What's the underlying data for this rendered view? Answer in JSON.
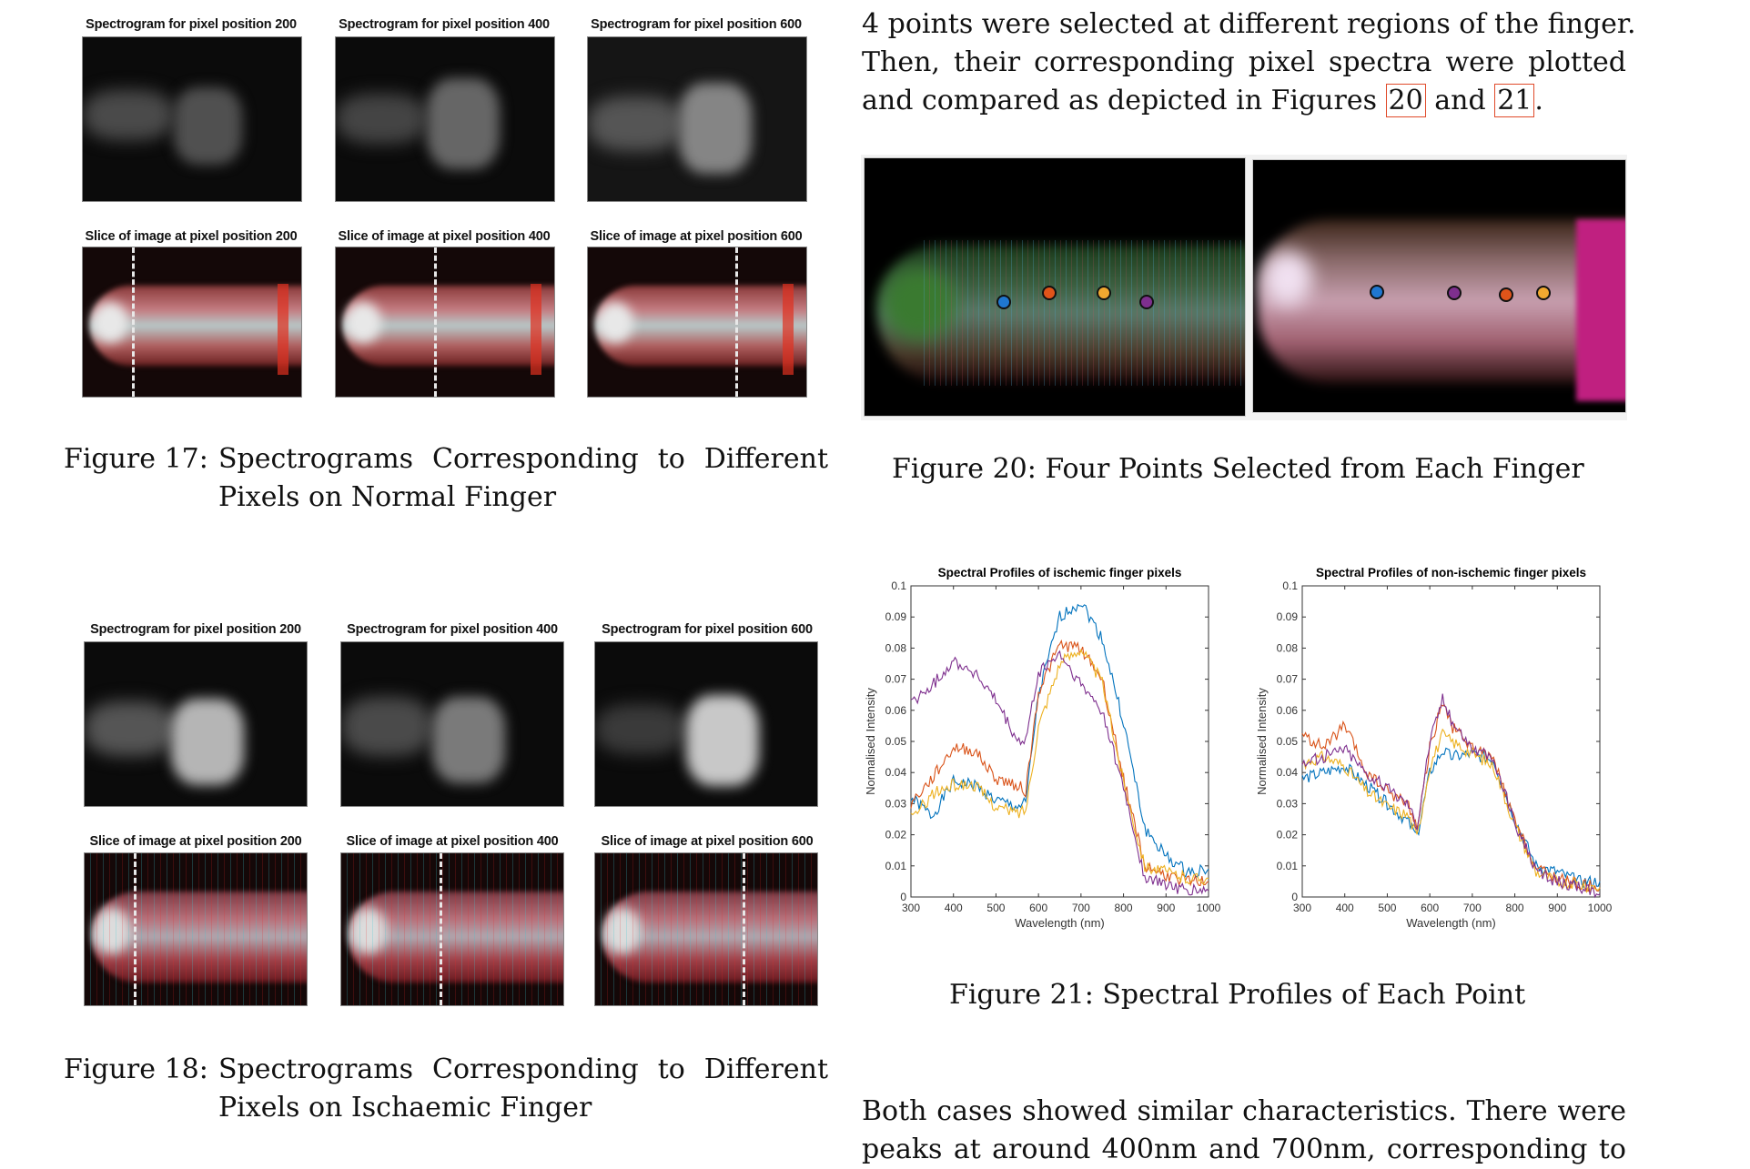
{
  "figure17": {
    "spectrogram_titles": [
      "Spectrogram for pixel position 200",
      "Spectrogram for pixel position 400",
      "Spectrogram for pixel position 600"
    ],
    "slice_titles": [
      "Slice of image at pixel position 200",
      "Slice of image at pixel position 400",
      "Slice of image at pixel position 600"
    ],
    "caption_label": "Figure 17:",
    "caption_line1": "Spectrograms  Corresponding  to  Different",
    "caption_line2": "Pixels on Normal Finger"
  },
  "figure18": {
    "spectrogram_titles": [
      "Spectrogram for pixel position 200",
      "Spectrogram for pixel position 400",
      "Spectrogram for pixel position 600"
    ],
    "slice_titles": [
      "Slice of image at pixel position 200",
      "Slice of image at pixel position 400",
      "Slice of image at pixel position 600"
    ],
    "caption_label": "Figure 18:",
    "caption_line1": "Spectrograms  Corresponding  to  Different",
    "caption_line2": "Pixels on Ischaemic Finger"
  },
  "intro_paragraph": {
    "line1": "4 points were selected at different regions of the finger.",
    "line2": "Then, their corresponding pixel spectra were plotted",
    "line3_before": "and compared as depicted in Figures ",
    "ref1": "20",
    "line3_mid": " and ",
    "ref2": "21",
    "line3_after": "."
  },
  "figure20": {
    "caption": "Figure 20: Four Points Selected from Each Finger",
    "point_colors": {
      "blue": "#1f77d0",
      "orange": "#e0541a",
      "yellow": "#f0a830",
      "purple": "#7e2f8e"
    }
  },
  "figure21": {
    "caption": "Figure 21: Spectral Profiles of Each Point"
  },
  "closing_paragraph": {
    "line1": "Both cases showed similar characteristics.  There were",
    "line2": "peaks at around 400nm and 700nm, corresponding to"
  },
  "chart_data": [
    {
      "type": "line",
      "title": "Spectral Profiles of ischemic finger pixels",
      "xlabel": "Wavelength (nm)",
      "ylabel": "Normalised Intensity",
      "xlim": [
        300,
        1000
      ],
      "ylim": [
        0,
        0.1
      ],
      "xticks": [
        300,
        400,
        500,
        600,
        700,
        800,
        900,
        1000
      ],
      "yticks": [
        0,
        0.01,
        0.02,
        0.03,
        0.04,
        0.05,
        0.06,
        0.07,
        0.08,
        0.09,
        0.1
      ],
      "grid": false,
      "x": [
        300,
        350,
        400,
        450,
        500,
        550,
        570,
        600,
        650,
        700,
        750,
        800,
        850,
        900,
        950,
        1000
      ],
      "series": [
        {
          "name": "blue",
          "color": "#0072BD",
          "values": [
            0.032,
            0.026,
            0.037,
            0.036,
            0.031,
            0.029,
            0.03,
            0.065,
            0.09,
            0.095,
            0.083,
            0.056,
            0.022,
            0.013,
            0.008,
            0.009
          ]
        },
        {
          "name": "orange",
          "color": "#D95319",
          "values": [
            0.03,
            0.038,
            0.048,
            0.047,
            0.038,
            0.036,
            0.034,
            0.066,
            0.081,
            0.08,
            0.07,
            0.038,
            0.01,
            0.007,
            0.005,
            0.005
          ]
        },
        {
          "name": "yellow",
          "color": "#EDB120",
          "values": [
            0.025,
            0.033,
            0.036,
            0.036,
            0.029,
            0.027,
            0.028,
            0.055,
            0.075,
            0.08,
            0.069,
            0.037,
            0.01,
            0.008,
            0.006,
            0.006
          ]
        },
        {
          "name": "purple",
          "color": "#7E2F8E",
          "values": [
            0.062,
            0.068,
            0.076,
            0.072,
            0.063,
            0.05,
            0.05,
            0.072,
            0.078,
            0.068,
            0.06,
            0.035,
            0.006,
            0.004,
            0.002,
            0.002
          ]
        }
      ]
    },
    {
      "type": "line",
      "title": "Spectral Profiles of non-ischemic finger pixels",
      "xlabel": "Wavelength (nm)",
      "ylabel": "Normalised Intensity",
      "xlim": [
        300,
        1000
      ],
      "ylim": [
        0,
        0.1
      ],
      "xticks": [
        300,
        400,
        500,
        600,
        700,
        800,
        900,
        1000
      ],
      "yticks": [
        0,
        0.01,
        0.02,
        0.03,
        0.04,
        0.05,
        0.06,
        0.07,
        0.08,
        0.09,
        0.1
      ],
      "grid": false,
      "x": [
        300,
        350,
        400,
        450,
        500,
        550,
        570,
        600,
        630,
        650,
        700,
        750,
        800,
        850,
        900,
        950,
        1000
      ],
      "series": [
        {
          "name": "blue",
          "color": "#0072BD",
          "values": [
            0.038,
            0.04,
            0.042,
            0.036,
            0.03,
            0.024,
            0.019,
            0.04,
            0.047,
            0.045,
            0.046,
            0.044,
            0.025,
            0.01,
            0.008,
            0.005,
            0.005
          ]
        },
        {
          "name": "orange",
          "color": "#D95319",
          "values": [
            0.052,
            0.048,
            0.055,
            0.04,
            0.034,
            0.03,
            0.022,
            0.048,
            0.063,
            0.055,
            0.048,
            0.044,
            0.024,
            0.009,
            0.006,
            0.004,
            0.003
          ]
        },
        {
          "name": "yellow",
          "color": "#EDB120",
          "values": [
            0.043,
            0.045,
            0.042,
            0.034,
            0.029,
            0.026,
            0.019,
            0.042,
            0.052,
            0.05,
            0.046,
            0.042,
            0.023,
            0.008,
            0.005,
            0.004,
            0.003
          ]
        },
        {
          "name": "purple",
          "color": "#7E2F8E",
          "values": [
            0.043,
            0.045,
            0.048,
            0.04,
            0.035,
            0.03,
            0.023,
            0.05,
            0.064,
            0.057,
            0.048,
            0.044,
            0.024,
            0.008,
            0.005,
            0.003,
            0.001
          ]
        }
      ]
    }
  ]
}
